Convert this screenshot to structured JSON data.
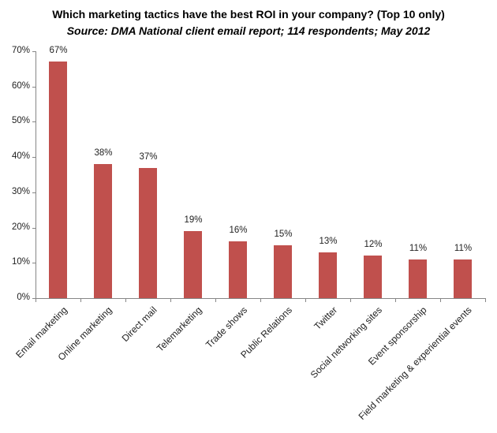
{
  "header": {
    "title": "Which marketing tactics have the best ROI in your company?  (Top 10 only)",
    "subtitle": "Source: DMA National client email report; 114 respondents;  May 2012"
  },
  "axis": {
    "y_ticks": [
      "0%",
      "10%",
      "20%",
      "30%",
      "40%",
      "50%",
      "60%",
      "70%"
    ]
  },
  "bars": [
    {
      "label": "Email marketing",
      "value": 67,
      "value_label": "67%"
    },
    {
      "label": "Online marketing",
      "value": 38,
      "value_label": "38%"
    },
    {
      "label": "Direct mail",
      "value": 37,
      "value_label": "37%"
    },
    {
      "label": "Telemarketing",
      "value": 19,
      "value_label": "19%"
    },
    {
      "label": "Trade shows",
      "value": 16,
      "value_label": "16%"
    },
    {
      "label": "Public Relations",
      "value": 15,
      "value_label": "15%"
    },
    {
      "label": "Twitter",
      "value": 13,
      "value_label": "13%"
    },
    {
      "label": "Social networking sites",
      "value": 12,
      "value_label": "12%"
    },
    {
      "label": "Event sponsorship",
      "value": 11,
      "value_label": "11%"
    },
    {
      "label": "Field marketing & experiential events",
      "value": 11,
      "value_label": "11%"
    }
  ],
  "colors": {
    "bar": "#c0504d",
    "axis": "#868686"
  },
  "chart_data": {
    "type": "bar",
    "title": "Which marketing tactics have the best ROI in your company?  (Top 10 only)",
    "subtitle": "Source: DMA National client email report; 114 respondents;  May 2012",
    "categories": [
      "Email marketing",
      "Online marketing",
      "Direct mail",
      "Telemarketing",
      "Trade shows",
      "Public Relations",
      "Twitter",
      "Social networking sites",
      "Event sponsorship",
      "Field marketing & experiential events"
    ],
    "values": [
      67,
      38,
      37,
      19,
      16,
      15,
      13,
      12,
      11,
      11
    ],
    "unit": "%",
    "xlabel": "",
    "ylabel": "",
    "ylim": [
      0,
      70
    ],
    "yticks": [
      0,
      10,
      20,
      30,
      40,
      50,
      60,
      70
    ],
    "grid": false,
    "legend": null,
    "data_labels": true
  }
}
